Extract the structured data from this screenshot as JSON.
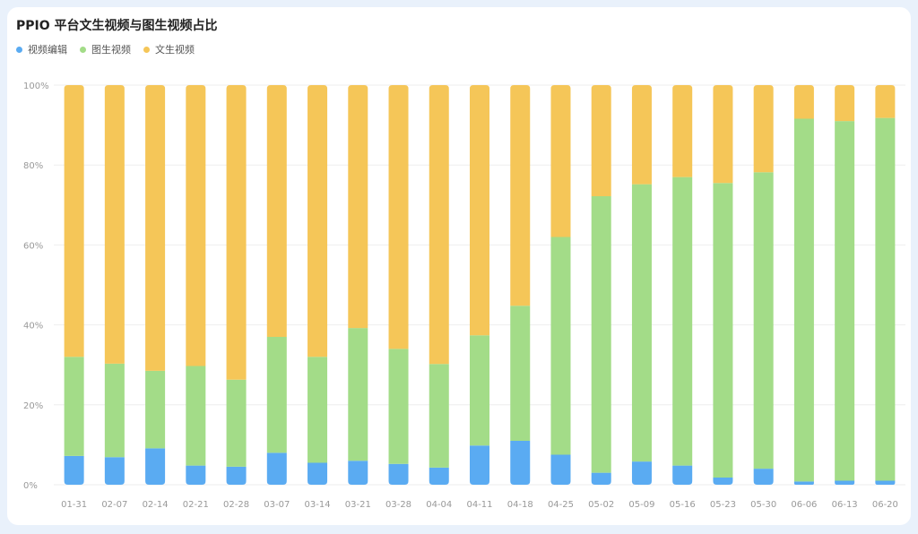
{
  "chart_data": {
    "type": "bar",
    "stacked": true,
    "normalized": true,
    "title": "PPIO 平台文生视频与图生视频占比",
    "legend_position": "top-left",
    "grid": true,
    "ylim": [
      0,
      100
    ],
    "y_ticks": [
      "0%",
      "20%",
      "40%",
      "60%",
      "80%",
      "100%"
    ],
    "categories": [
      "01-31",
      "02-07",
      "02-14",
      "02-21",
      "02-28",
      "03-07",
      "03-14",
      "03-21",
      "03-28",
      "04-04",
      "04-11",
      "04-18",
      "04-25",
      "05-02",
      "05-09",
      "05-16",
      "05-23",
      "05-30",
      "06-06",
      "06-13",
      "06-20"
    ],
    "series": [
      {
        "name": "视频编辑",
        "color": "#5aabf2",
        "values": [
          7.2,
          6.9,
          9.1,
          4.8,
          4.5,
          8.0,
          5.5,
          6.0,
          5.2,
          4.3,
          9.8,
          11.0,
          7.5,
          3.0,
          5.8,
          4.8,
          1.8,
          4.0,
          0.8,
          1.0,
          1.0
        ]
      },
      {
        "name": "图生视频",
        "color": "#a3dc88",
        "values": [
          24.8,
          23.4,
          19.4,
          24.9,
          21.8,
          29.0,
          26.5,
          33.2,
          28.8,
          25.9,
          27.6,
          33.8,
          54.5,
          69.2,
          69.4,
          72.2,
          73.7,
          74.2,
          90.8,
          90.0,
          90.8
        ]
      },
      {
        "name": "文生视频",
        "color": "#f5c658",
        "values": [
          68.0,
          69.7,
          71.5,
          70.3,
          73.7,
          63.0,
          68.0,
          60.8,
          66.0,
          69.8,
          62.6,
          55.2,
          38.0,
          27.8,
          24.8,
          23.0,
          24.5,
          21.8,
          8.4,
          9.0,
          8.2
        ]
      }
    ]
  }
}
